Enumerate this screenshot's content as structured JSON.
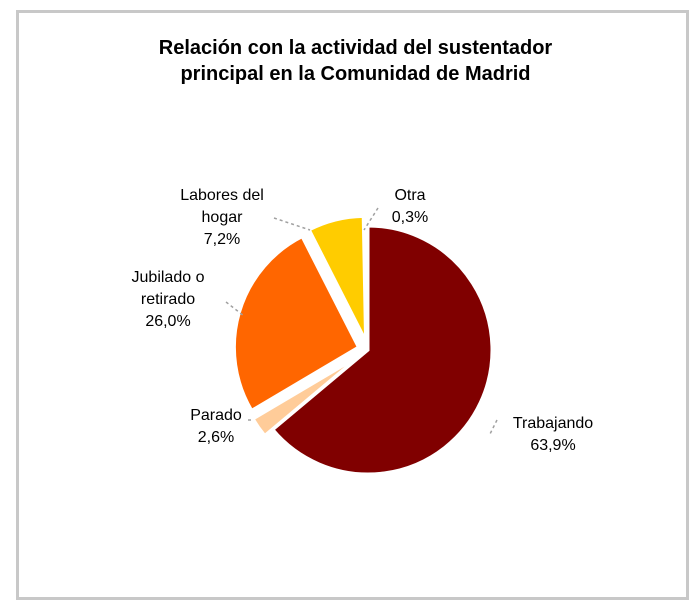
{
  "chart_data": {
    "type": "pie",
    "title_lines": [
      "Relación con la actividad del sustentador",
      "principal en la Comunidad de Madrid"
    ],
    "slices": [
      {
        "label_lines": [
          "Trabajando"
        ],
        "value_text": "63,9%",
        "value": 63.9,
        "color": "#800000",
        "exploded": false
      },
      {
        "label_lines": [
          "Parado"
        ],
        "value_text": "2,6%",
        "value": 2.6,
        "color": "#ffcc99",
        "exploded": true
      },
      {
        "label_lines": [
          "Jubilado o",
          "retirado"
        ],
        "value_text": "26,0%",
        "value": 26.0,
        "color": "#ff6600",
        "exploded": true
      },
      {
        "label_lines": [
          "Labores del",
          "hogar"
        ],
        "value_text": "7,2%",
        "value": 7.2,
        "color": "#ffcc00",
        "exploded": true
      },
      {
        "label_lines": [
          "Otra"
        ],
        "value_text": "0,3%",
        "value": 0.3,
        "color": "#ffff99",
        "exploded": true
      }
    ],
    "legend": "none"
  }
}
